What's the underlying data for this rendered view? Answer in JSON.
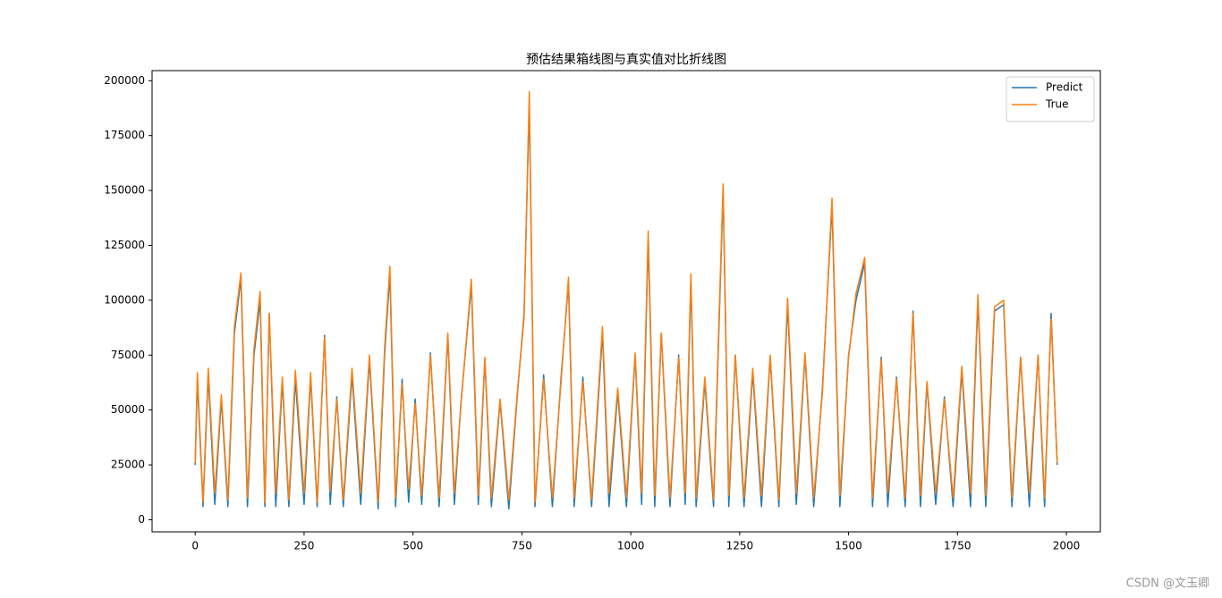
{
  "chart_data": {
    "type": "line",
    "title": "预估结果箱线图与真实值对比折线图",
    "watermark": "CSDN @文玉卿",
    "legend": "upper right",
    "xlim": [
      -99,
      2078
    ],
    "ylim": [
      -5500,
      204600
    ],
    "xticks": [
      0,
      250,
      500,
      750,
      1000,
      1250,
      1500,
      1750,
      2000
    ],
    "yticks": [
      0,
      25000,
      50000,
      75000,
      100000,
      125000,
      150000,
      175000,
      200000
    ],
    "x": [
      0,
      5,
      18,
      30,
      45,
      60,
      75,
      90,
      105,
      120,
      135,
      149,
      160,
      170,
      185,
      200,
      215,
      230,
      250,
      265,
      280,
      297,
      310,
      325,
      340,
      360,
      380,
      400,
      420,
      435,
      447,
      460,
      475,
      490,
      505,
      520,
      540,
      560,
      580,
      595,
      610,
      634,
      650,
      665,
      680,
      700,
      720,
      740,
      755,
      767,
      780,
      800,
      820,
      840,
      857,
      870,
      890,
      910,
      935,
      950,
      970,
      990,
      1010,
      1025,
      1040,
      1055,
      1070,
      1090,
      1110,
      1125,
      1138,
      1150,
      1170,
      1190,
      1212,
      1225,
      1240,
      1260,
      1280,
      1300,
      1320,
      1340,
      1360,
      1380,
      1400,
      1420,
      1440,
      1462,
      1480,
      1500,
      1517,
      1537,
      1555,
      1575,
      1590,
      1610,
      1630,
      1648,
      1665,
      1680,
      1700,
      1720,
      1740,
      1760,
      1780,
      1797,
      1815,
      1835,
      1856,
      1875,
      1895,
      1915,
      1935,
      1950,
      1965,
      1979
    ],
    "series": [
      {
        "name": "Predict",
        "color": "#1f77b4",
        "values": [
          25000,
          64000,
          6000,
          66000,
          7000,
          55000,
          6000,
          85000,
          110000,
          6000,
          75000,
          100000,
          6000,
          94000,
          6000,
          63000,
          6000,
          64000,
          7000,
          65000,
          6000,
          84000,
          7000,
          56000,
          6000,
          66000,
          7000,
          73000,
          5000,
          76000,
          112000,
          6000,
          64000,
          8000,
          55000,
          7000,
          76000,
          6000,
          84000,
          7000,
          53000,
          107000,
          7000,
          73000,
          6000,
          54000,
          5000,
          58000,
          94000,
          190000,
          6000,
          66000,
          6000,
          65000,
          108000,
          6000,
          65000,
          6000,
          85000,
          6000,
          58000,
          6000,
          75000,
          7000,
          128000,
          6000,
          85000,
          6000,
          75000,
          7000,
          109000,
          6000,
          63000,
          6000,
          150000,
          6000,
          75000,
          6000,
          67000,
          6000,
          74000,
          6000,
          98000,
          7000,
          75000,
          6000,
          60000,
          143000,
          6000,
          75000,
          100000,
          117000,
          6000,
          74000,
          6000,
          65000,
          6000,
          95000,
          6000,
          62000,
          7000,
          56000,
          6000,
          68000,
          6000,
          100000,
          6000,
          95000,
          98000,
          6000,
          74000,
          6000,
          75000,
          6000,
          94000,
          25000
        ]
      },
      {
        "name": "True",
        "color": "#ff7f0e",
        "values": [
          26000,
          67000,
          8000,
          69000,
          12000,
          57000,
          9000,
          88000,
          112500,
          10000,
          78000,
          104000,
          8000,
          94000,
          12000,
          65000,
          9000,
          68000,
          12000,
          67000,
          8000,
          83000,
          13000,
          55000,
          9000,
          69000,
          12000,
          75000,
          8000,
          79000,
          115500,
          10000,
          62000,
          14000,
          53000,
          11000,
          75000,
          10000,
          85000,
          12000,
          52000,
          109500,
          11000,
          74000,
          10000,
          55000,
          9000,
          59000,
          92000,
          195000,
          8000,
          64000,
          10000,
          63000,
          110500,
          10000,
          63000,
          9000,
          88000,
          12000,
          60000,
          10000,
          76000,
          12000,
          131500,
          11000,
          85000,
          10000,
          74000,
          12000,
          112000,
          10000,
          65000,
          9000,
          153000,
          11000,
          75000,
          10000,
          69000,
          11000,
          75000,
          9000,
          101000,
          12000,
          76000,
          10000,
          58000,
          146500,
          11000,
          74000,
          103000,
          119500,
          10000,
          73000,
          12000,
          64000,
          10000,
          94000,
          11000,
          63000,
          12000,
          55000,
          10000,
          70000,
          12000,
          102500,
          11000,
          97000,
          100000,
          10000,
          74000,
          12000,
          75000,
          10000,
          91500,
          26000
        ]
      }
    ]
  }
}
